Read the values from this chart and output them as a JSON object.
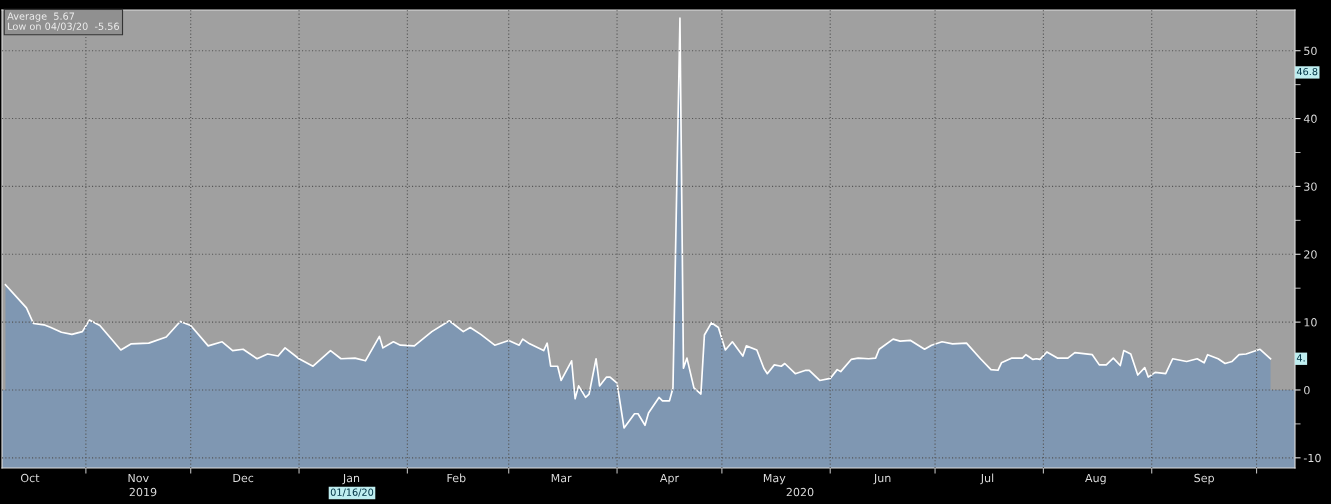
{
  "chart_data": {
    "type": "area",
    "annotations": [
      "Average  5.67",
      "Low on 04/03/20  -5.56",
      "2019",
      "2020",
      "01/16/20",
      {
        "text": "46.8",
        "y": 46.8
      },
      {
        "text": "4.",
        "y": 4.6
      }
    ],
    "x": [
      "2019-10-09",
      "2019-10-15",
      "2019-10-17",
      "2019-10-20",
      "2019-10-22",
      "2019-10-25",
      "2019-10-28",
      "2019-10-31",
      "2019-11-02",
      "2019-11-05",
      "2019-11-11",
      "2019-11-14",
      "2019-11-19",
      "2019-11-24",
      "2019-11-28",
      "2019-12-01",
      "2019-12-06",
      "2019-12-10",
      "2019-12-13",
      "2019-12-16",
      "2019-12-20",
      "2019-12-23",
      "2019-12-26",
      "2019-12-28",
      "2020-01-01",
      "2020-01-05",
      "2020-01-10",
      "2020-01-13",
      "2020-01-17",
      "2020-01-20",
      "2020-01-24",
      "2020-01-25",
      "2020-01-28",
      "2020-01-30",
      "2020-02-03",
      "2020-02-08",
      "2020-02-13",
      "2020-02-17",
      "2020-02-19",
      "2020-02-22",
      "2020-02-26",
      "2020-03-01",
      "2020-03-04",
      "2020-03-05",
      "2020-03-07",
      "2020-03-11",
      "2020-03-12",
      "2020-03-13",
      "2020-03-15",
      "2020-03-16",
      "2020-03-19",
      "2020-03-20",
      "2020-03-21",
      "2020-03-23",
      "2020-03-24",
      "2020-03-26",
      "2020-03-27",
      "2020-03-29",
      "2020-03-30",
      "2020-04-01",
      "2020-04-03",
      "2020-04-06",
      "2020-04-07",
      "2020-04-09",
      "2020-04-10",
      "2020-04-13",
      "2020-04-14",
      "2020-04-16",
      "2020-04-17",
      "2020-04-19",
      "2020-04-20",
      "2020-04-21",
      "2020-04-23",
      "2020-04-25",
      "2020-04-26",
      "2020-04-28",
      "2020-04-30",
      "2020-05-02",
      "2020-05-04",
      "2020-05-07",
      "2020-05-08",
      "2020-05-11",
      "2020-05-13",
      "2020-05-14",
      "2020-05-16",
      "2020-05-18",
      "2020-05-19",
      "2020-05-22",
      "2020-05-25",
      "2020-05-26",
      "2020-05-29",
      "2020-06-01",
      "2020-06-03",
      "2020-06-04",
      "2020-06-07",
      "2020-06-09",
      "2020-06-12",
      "2020-06-14",
      "2020-06-15",
      "2020-06-19",
      "2020-06-21",
      "2020-06-24",
      "2020-06-28",
      "2020-06-30",
      "2020-07-03",
      "2020-07-06",
      "2020-07-10",
      "2020-07-14",
      "2020-07-17",
      "2020-07-19",
      "2020-07-20",
      "2020-07-23",
      "2020-07-26",
      "2020-07-27",
      "2020-07-29",
      "2020-07-30",
      "2020-07-31",
      "2020-08-02",
      "2020-08-05",
      "2020-08-08",
      "2020-08-10",
      "2020-08-15",
      "2020-08-17",
      "2020-08-19",
      "2020-08-21",
      "2020-08-23",
      "2020-08-24",
      "2020-08-26",
      "2020-08-28",
      "2020-08-30",
      "2020-08-31",
      "2020-09-02",
      "2020-09-05",
      "2020-09-07",
      "2020-09-11",
      "2020-09-14",
      "2020-09-16",
      "2020-09-17",
      "2020-09-20",
      "2020-09-22",
      "2020-09-24",
      "2020-09-26",
      "2020-09-28",
      "2020-10-02",
      "2020-10-05"
    ],
    "series": [
      {
        "color": "#7f97b2",
        "values": [
          15.5,
          12.1,
          9.8,
          9.6,
          9.2,
          8.5,
          8.2,
          8.6,
          10.3,
          9.5,
          5.9,
          6.8,
          6.9,
          7.8,
          10.1,
          9.5,
          6.5,
          7.1,
          5.8,
          6.0,
          4.6,
          5.3,
          5.0,
          6.2,
          4.6,
          3.5,
          5.8,
          4.6,
          4.7,
          4.3,
          7.9,
          6.2,
          7.1,
          6.6,
          6.5,
          8.6,
          10.2,
          8.6,
          9.2,
          8.2,
          6.6,
          7.3,
          6.6,
          7.5,
          6.8,
          5.8,
          6.9,
          3.5,
          3.5,
          1.4,
          4.3,
          -1.3,
          0.6,
          -1.1,
          -0.6,
          4.6,
          0.6,
          1.9,
          1.9,
          1.0,
          -5.6,
          -3.5,
          -3.5,
          -5.2,
          -3.4,
          -1.1,
          -1.6,
          -1.6,
          0.3,
          54.8,
          3.2,
          4.7,
          0.3,
          -0.6,
          8.1,
          9.9,
          9.2,
          5.9,
          7.1,
          5.0,
          6.5,
          5.9,
          3.2,
          2.4,
          3.7,
          3.5,
          3.9,
          2.4,
          2.9,
          2.9,
          1.4,
          1.7,
          3.0,
          2.7,
          4.5,
          4.7,
          4.6,
          4.7,
          6.0,
          7.5,
          7.2,
          7.3,
          6.0,
          6.6,
          7.1,
          6.8,
          6.9,
          4.6,
          3.0,
          2.9,
          4.0,
          4.7,
          4.7,
          5.2,
          4.5,
          4.6,
          4.5,
          5.6,
          4.7,
          4.7,
          5.5,
          5.2,
          3.7,
          3.7,
          4.7,
          3.6,
          5.8,
          5.3,
          2.2,
          3.3,
          1.9,
          2.6,
          2.4,
          4.6,
          4.2,
          4.6,
          4.0,
          5.2,
          4.6,
          3.9,
          4.2,
          5.2,
          5.3,
          6.0,
          4.6
        ]
      }
    ],
    "xlim": [
      "2019-10-08",
      "2020-10-12"
    ],
    "xticks": [
      {
        "value": "2019-10-16",
        "label": "Oct"
      },
      {
        "value": "2019-11-01",
        "label": null
      },
      {
        "value": "2019-11-16",
        "label": "Nov"
      },
      {
        "value": "2019-12-01",
        "label": null
      },
      {
        "value": "2019-12-16",
        "label": "Dec"
      },
      {
        "value": "2020-01-01",
        "label": null
      },
      {
        "value": "2020-01-16",
        "label": "Jan"
      },
      {
        "value": "2020-02-01",
        "label": null
      },
      {
        "value": "2020-02-15",
        "label": "Feb"
      },
      {
        "value": "2020-03-01",
        "label": null
      },
      {
        "value": "2020-03-16",
        "label": "Mar"
      },
      {
        "value": "2020-04-01",
        "label": null
      },
      {
        "value": "2020-04-16",
        "label": "Apr"
      },
      {
        "value": "2020-05-01",
        "label": null
      },
      {
        "value": "2020-05-16",
        "label": "May"
      },
      {
        "value": "2020-06-01",
        "label": null
      },
      {
        "value": "2020-06-16",
        "label": "Jun"
      },
      {
        "value": "2020-07-01",
        "label": null
      },
      {
        "value": "2020-07-16",
        "label": "Jul"
      },
      {
        "value": "2020-08-01",
        "label": null
      },
      {
        "value": "2020-08-16",
        "label": "Aug"
      },
      {
        "value": "2020-09-01",
        "label": null
      },
      {
        "value": "2020-09-16",
        "label": "Sep"
      },
      {
        "value": "2020-10-01",
        "label": null
      }
    ],
    "ylim": [
      -11.5,
      56
    ],
    "yticks": [
      -10,
      {
        "value": -5,
        "label": null
      },
      0,
      {
        "value": 5,
        "label": null
      },
      10,
      {
        "value": 15,
        "label": null
      },
      20,
      {
        "value": 25,
        "label": null
      },
      30,
      {
        "value": 35,
        "label": null
      },
      40,
      {
        "value": 45,
        "label": null
      },
      50
    ],
    "bands": [
      {
        "axis": "y",
        "from": -11.5,
        "to": 0,
        "color": "#7f97b2"
      }
    ],
    "grid": true
  }
}
